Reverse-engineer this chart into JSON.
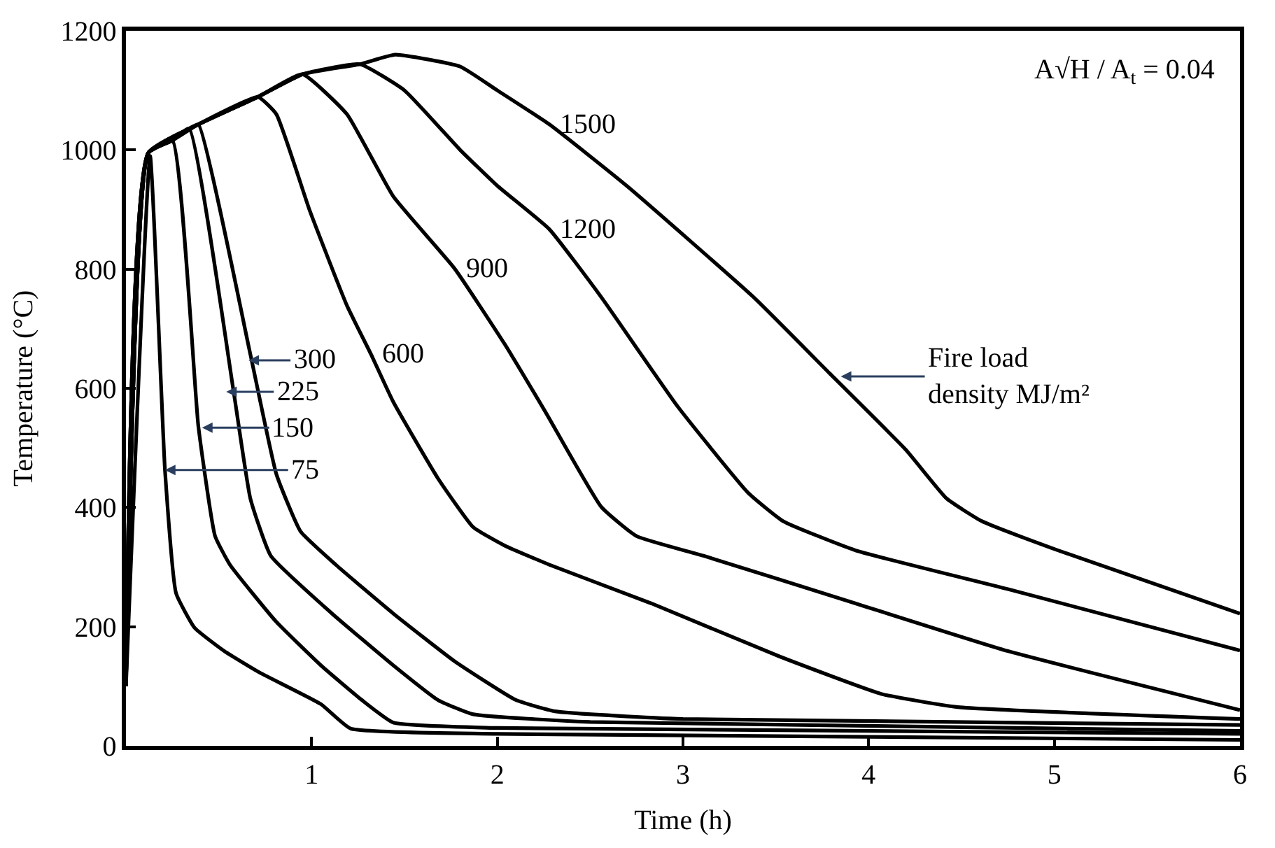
{
  "chart_data": {
    "type": "line",
    "xlabel": "Time (h)",
    "ylabel": "Temperature (°C)",
    "xlim": [
      0,
      6
    ],
    "xticks": [
      1,
      2,
      3,
      4,
      5,
      6
    ],
    "ylim": [
      0,
      1200
    ],
    "yticks": [
      0,
      200,
      400,
      600,
      800,
      1000,
      1200
    ],
    "marker": "none",
    "line_style": "solid",
    "series": [
      {
        "color": "#000000",
        "x": [
          0,
          0.13,
          0.21,
          0.27,
          0.37,
          0.53,
          0.72,
          1.05,
          1.21,
          2,
          6
        ],
        "values": [
          100,
          990,
          463,
          256,
          198,
          159,
          123,
          70,
          29,
          20,
          10
        ]
      },
      {
        "color": "#000000",
        "x": [
          0,
          0.12,
          0.25,
          0.39,
          0.48,
          0.56,
          0.81,
          1.05,
          1.27,
          1.44,
          2,
          6
        ],
        "values": [
          100,
          995,
          1016,
          536,
          352,
          304,
          208,
          135,
          77,
          39,
          30,
          20
        ]
      },
      {
        "color": "#000000",
        "x": [
          0,
          0.12,
          0.25,
          0.34,
          0.58,
          0.67,
          0.78,
          1.11,
          1.44,
          1.68,
          1.87,
          2.5,
          6
        ],
        "values": [
          100,
          995,
          1016,
          1036,
          594,
          415,
          319,
          222,
          135,
          77,
          53,
          40,
          25
        ]
      },
      {
        "color": "#000000",
        "x": [
          0,
          0.12,
          0.25,
          0.34,
          0.39,
          0.67,
          0.81,
          0.94,
          1.13,
          1.44,
          1.77,
          2.1,
          2.31,
          3,
          6
        ],
        "values": [
          100,
          995,
          1016,
          1036,
          1043,
          657,
          456,
          360,
          304,
          222,
          142,
          77,
          58,
          45,
          35
        ]
      },
      {
        "color": "#000000",
        "x": [
          0,
          0.12,
          0.25,
          0.39,
          0.71,
          0.81,
          0.99,
          1.19,
          1.32,
          1.44,
          1.68,
          1.87,
          2.04,
          2.28,
          2.83,
          3.52,
          4.07,
          4.48,
          6
        ],
        "values": [
          100,
          995,
          1016,
          1043,
          1089,
          1060,
          898,
          739,
          657,
          577,
          449,
          367,
          336,
          304,
          239,
          150,
          87,
          65,
          45
        ]
      },
      {
        "color": "#000000",
        "x": [
          0,
          0.12,
          0.39,
          0.71,
          0.95,
          1.19,
          1.44,
          1.77,
          2.04,
          2.26,
          2.56,
          2.75,
          3.11,
          3.93,
          4.75,
          6
        ],
        "values": [
          100,
          995,
          1043,
          1089,
          1127,
          1060,
          922,
          801,
          674,
          560,
          401,
          352,
          319,
          239,
          159,
          60
        ]
      },
      {
        "color": "#000000",
        "x": [
          0,
          0.12,
          0.39,
          0.71,
          0.95,
          1.26,
          1.5,
          1.8,
          2.0,
          2.28,
          2.56,
          2.97,
          3.35,
          3.54,
          3.93,
          4.75,
          6
        ],
        "values": [
          100,
          995,
          1043,
          1089,
          1127,
          1144,
          1100,
          1000,
          940,
          867,
          753,
          570,
          425,
          377,
          328,
          263,
          160
        ]
      },
      {
        "color": "#000000",
        "x": [
          0,
          0.12,
          0.39,
          0.71,
          0.95,
          1.26,
          1.45,
          1.8,
          2.0,
          2.28,
          2.7,
          3.38,
          3.79,
          4.2,
          4.42,
          4.61,
          5.02,
          6
        ],
        "values": [
          100,
          995,
          1043,
          1089,
          1127,
          1144,
          1160,
          1140,
          1100,
          1043,
          939,
          753,
          625,
          497,
          415,
          377,
          328,
          222
        ]
      }
    ],
    "annotations": [
      {
        "text": "75",
        "x": 0.21,
        "y": 463
      },
      {
        "text": "150",
        "x": 0.41,
        "y": 534
      },
      {
        "text": "225",
        "x": 0.54,
        "y": 594
      },
      {
        "text": "300",
        "x": 0.66,
        "y": 647
      },
      {
        "text": "600",
        "x": 1.32,
        "y": 657
      },
      {
        "text": "900",
        "x": 1.77,
        "y": 801
      },
      {
        "text": "1200",
        "x": 2.28,
        "y": 867
      },
      {
        "text": "1500",
        "x": 2.28,
        "y": 1043
      },
      {
        "text": "Fire load\ndensity MJ/m²",
        "x": 3.85,
        "y": 620
      },
      "A√H / A$_{t}$ = 0.04"
    ]
  }
}
